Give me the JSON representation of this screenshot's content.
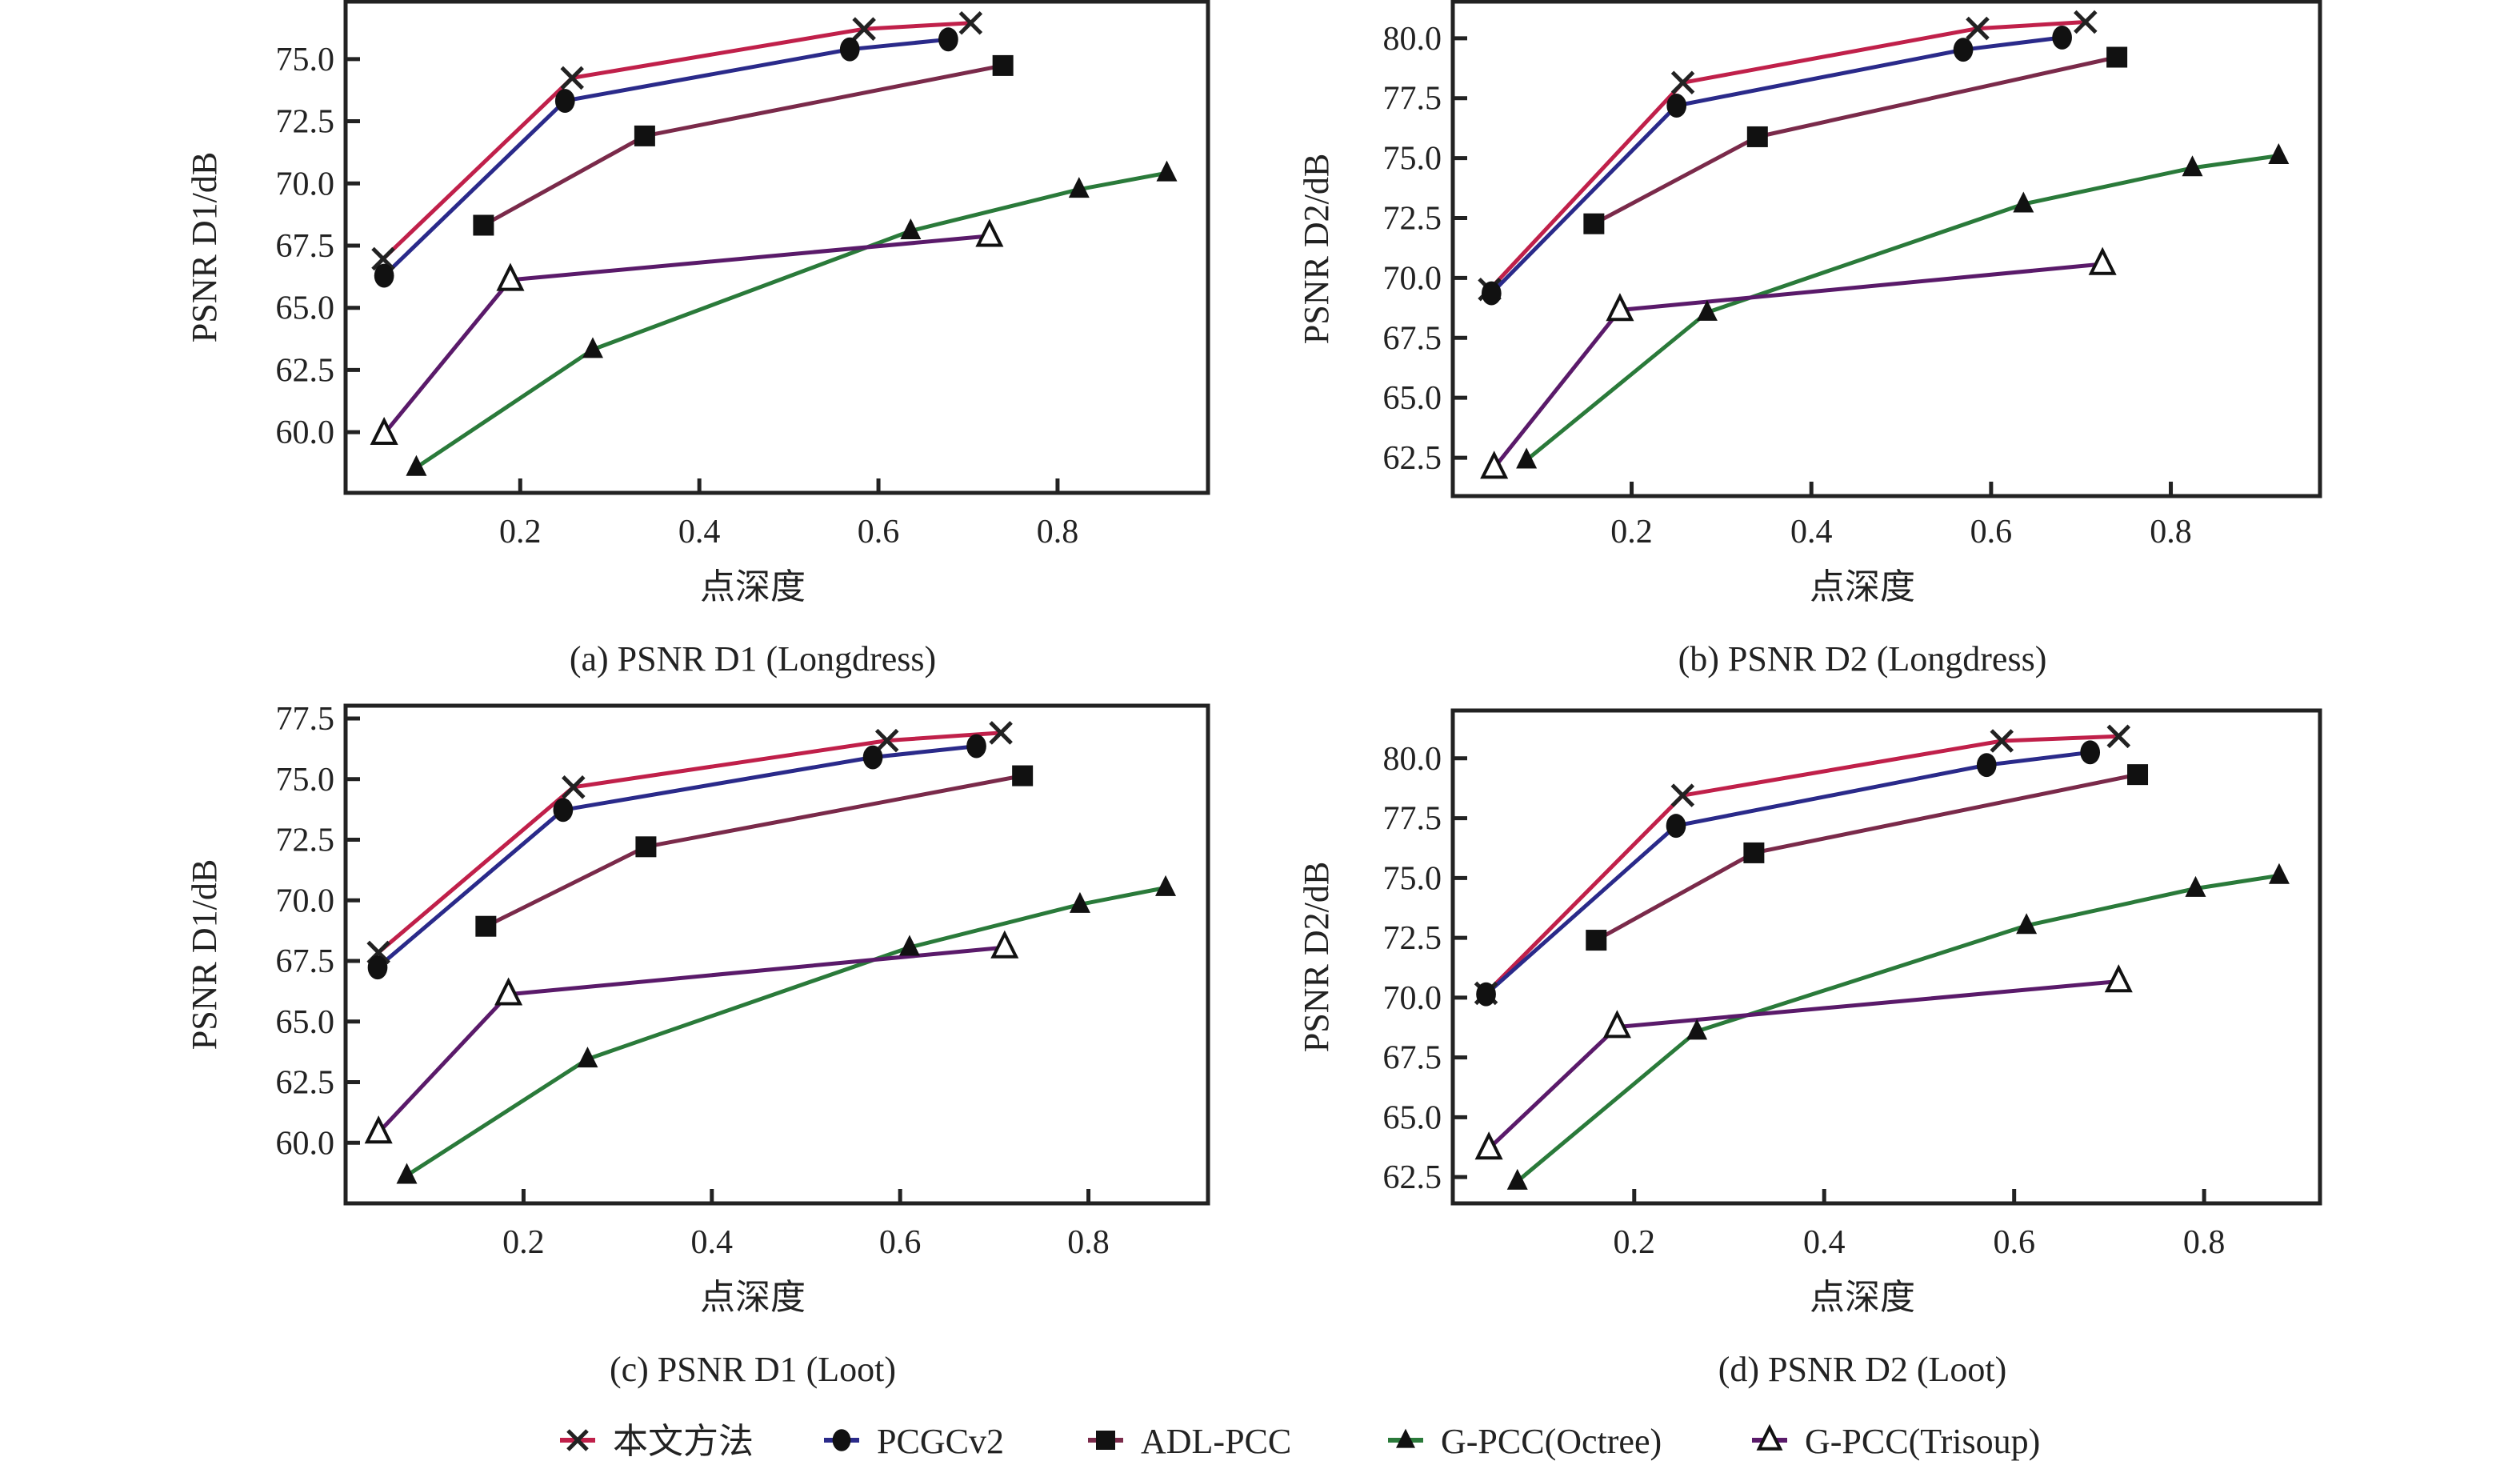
{
  "figure": {
    "legend": [
      {
        "name": "本文方法",
        "marker": "x-cross",
        "color": "#c0204a"
      },
      {
        "name": "PCGCv2",
        "marker": "filled-circle",
        "color": "#2a2a8a"
      },
      {
        "name": "ADL-PCC",
        "marker": "filled-square",
        "color": "#7a2a4a"
      },
      {
        "name": "G-PCC(Octree)",
        "marker": "filled-triangle",
        "color": "#2a7a3a"
      },
      {
        "name": "G-PCC(Trisoup)",
        "marker": "open-triangle",
        "color": "#5a1a6a"
      }
    ]
  },
  "chart_data": [
    {
      "type": "line",
      "title": "(a) PSNR D1 (Longdress)",
      "xlabel": "点深度",
      "ylabel": "PSNR D1/dB",
      "xlim": [
        0.005,
        0.968
      ],
      "ylim": [
        57.56,
        77.31
      ],
      "xticks": [
        "0.2",
        "0.4",
        "0.6",
        "0.8"
      ],
      "yticks": [
        "60.0",
        "62.5",
        "65.0",
        "67.5",
        "70.0",
        "72.5",
        "75.0"
      ],
      "grid": false,
      "legend_position": "bottom",
      "series": [
        {
          "name": "本文方法",
          "x": [
            0.047,
            0.258,
            0.584,
            0.703
          ],
          "y": [
            66.97,
            74.24,
            76.21,
            76.45
          ]
        },
        {
          "name": "PCGCv2",
          "x": [
            0.048,
            0.25,
            0.568,
            0.678
          ],
          "y": [
            66.29,
            73.32,
            75.39,
            75.79
          ]
        },
        {
          "name": "ADL-PCC",
          "x": [
            0.159,
            0.339,
            0.739
          ],
          "y": [
            68.32,
            71.91,
            74.74
          ]
        },
        {
          "name": "G-PCC(Octree)",
          "x": [
            0.084,
            0.281,
            0.636,
            0.824,
            0.922
          ],
          "y": [
            58.58,
            63.32,
            68.09,
            69.76,
            70.42
          ]
        },
        {
          "name": "G-PCC(Trisoup)",
          "x": [
            0.048,
            0.189,
            0.724
          ],
          "y": [
            59.93,
            66.12,
            67.89
          ]
        }
      ]
    },
    {
      "type": "line",
      "title": "(b) PSNR D2 (Longdress)",
      "xlabel": "点深度",
      "ylabel": "PSNR D2/dB",
      "xlim": [
        0.001,
        0.966
      ],
      "ylim": [
        60.9,
        81.53
      ],
      "xticks": [
        "0.2",
        "0.4",
        "0.6",
        "0.8"
      ],
      "yticks": [
        "62.5",
        "65.0",
        "67.5",
        "70.0",
        "72.5",
        "75.0",
        "77.5",
        "80.0"
      ],
      "grid": false,
      "legend_position": "bottom",
      "series": [
        {
          "name": "本文方法",
          "x": [
            0.042,
            0.257,
            0.585,
            0.705
          ],
          "y": [
            69.52,
            78.15,
            80.41,
            80.68
          ]
        },
        {
          "name": "PCGCv2",
          "x": [
            0.044,
            0.25,
            0.569,
            0.679
          ],
          "y": [
            69.36,
            77.19,
            79.52,
            80.03
          ]
        },
        {
          "name": "ADL-PCC",
          "x": [
            0.158,
            0.34,
            0.74
          ],
          "y": [
            72.26,
            75.89,
            79.21
          ]
        },
        {
          "name": "G-PCC(Octree)",
          "x": [
            0.083,
            0.284,
            0.636,
            0.824,
            0.92
          ],
          "y": [
            62.4,
            68.56,
            73.08,
            74.59,
            75.1
          ]
        },
        {
          "name": "G-PCC(Trisoup)",
          "x": [
            0.047,
            0.187,
            0.724
          ],
          "y": [
            62.08,
            68.66,
            70.58
          ]
        }
      ]
    },
    {
      "type": "line",
      "title": "(c) PSNR D1 (Loot)",
      "xlabel": "点深度",
      "ylabel": "PSNR D1/dB",
      "xlim": [
        0.011,
        0.927
      ],
      "ylim": [
        57.5,
        78.03
      ],
      "xticks": [
        "0.2",
        "0.4",
        "0.6",
        "0.8"
      ],
      "yticks": [
        "60.0",
        "62.5",
        "65.0",
        "67.5",
        "70.0",
        "72.5",
        "75.0",
        "77.5"
      ],
      "grid": false,
      "legend_position": "bottom",
      "series": [
        {
          "name": "本文方法",
          "x": [
            0.046,
            0.253,
            0.586,
            0.707
          ],
          "y": [
            67.85,
            74.67,
            76.59,
            76.91
          ]
        },
        {
          "name": "PCGCv2",
          "x": [
            0.045,
            0.242,
            0.571,
            0.681
          ],
          "y": [
            67.23,
            73.73,
            75.9,
            76.36
          ]
        },
        {
          "name": "ADL-PCC",
          "x": [
            0.16,
            0.33,
            0.73
          ],
          "y": [
            68.93,
            72.21,
            75.14
          ]
        },
        {
          "name": "G-PCC(Octree)",
          "x": [
            0.076,
            0.268,
            0.61,
            0.791,
            0.882
          ],
          "y": [
            58.65,
            63.45,
            68.06,
            69.83,
            70.52
          ]
        },
        {
          "name": "G-PCC(Trisoup)",
          "x": [
            0.046,
            0.184,
            0.711
          ],
          "y": [
            60.42,
            66.12,
            68.06
          ]
        }
      ]
    },
    {
      "type": "line",
      "title": "(d) PSNR D2 (Loot)",
      "xlabel": "点深度",
      "ylabel": "PSNR D2/dB",
      "xlim": [
        0.009,
        0.922
      ],
      "ylim": [
        61.4,
        82.0
      ],
      "xticks": [
        "0.2",
        "0.4",
        "0.6",
        "0.8"
      ],
      "yticks": [
        "62.5",
        "65.0",
        "67.5",
        "70.0",
        "72.5",
        "75.0",
        "77.5",
        "80.0"
      ],
      "grid": false,
      "legend_position": "bottom",
      "series": [
        {
          "name": "本文方法",
          "x": [
            0.044,
            0.251,
            0.587,
            0.71
          ],
          "y": [
            70.18,
            78.45,
            80.73,
            80.92
          ]
        },
        {
          "name": "PCGCv2",
          "x": [
            0.044,
            0.244,
            0.571,
            0.68
          ],
          "y": [
            70.14,
            77.18,
            79.72,
            80.25
          ]
        },
        {
          "name": "ADL-PCC",
          "x": [
            0.16,
            0.326,
            0.73
          ],
          "y": [
            72.4,
            76.05,
            79.32
          ]
        },
        {
          "name": "G-PCC(Octree)",
          "x": [
            0.077,
            0.266,
            0.613,
            0.791,
            0.879
          ],
          "y": [
            62.32,
            68.59,
            73.01,
            74.56,
            75.1
          ]
        },
        {
          "name": "G-PCC(Trisoup)",
          "x": [
            0.047,
            0.182,
            0.71
          ],
          "y": [
            63.69,
            68.77,
            70.68
          ]
        }
      ]
    }
  ]
}
